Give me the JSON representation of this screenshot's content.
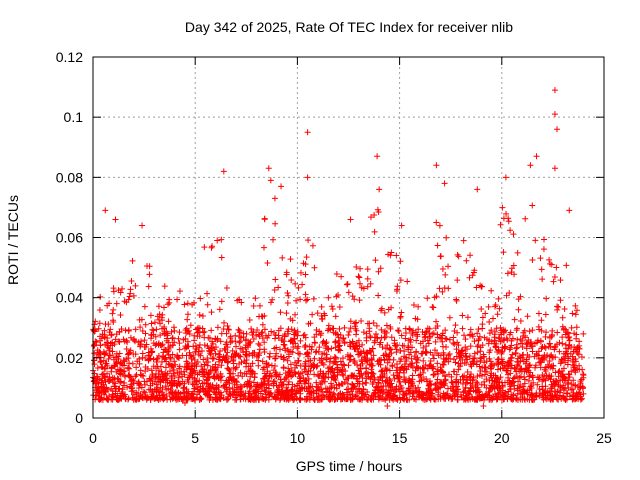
{
  "chart_data": {
    "type": "scatter",
    "title": "Day 342 of 2025, Rate Of TEC Index for receiver nlib",
    "xlabel": "GPS time / hours",
    "ylabel": "ROTI / TECUs",
    "xlim": [
      0,
      25
    ],
    "ylim": [
      0,
      0.12
    ],
    "xticks": [
      0,
      5,
      10,
      15,
      20,
      25
    ],
    "xtick_labels": [
      "0",
      "5",
      "10",
      "15",
      "20",
      "25"
    ],
    "yticks": [
      0,
      0.02,
      0.04,
      0.06,
      0.08,
      0.1,
      0.12
    ],
    "ytick_labels": [
      "0",
      "0.02",
      "0.04",
      "0.06",
      "0.08",
      "0.1",
      "0.12"
    ],
    "grid": true,
    "marker": "plus",
    "colors": {
      "points": "#ff0000",
      "grid": "#a0a0a0",
      "axes": "#000000"
    },
    "series": [
      {
        "x_range": [
          0,
          24
        ],
        "baseline_band": [
          0.006,
          0.03
        ],
        "notable_points": [
          {
            "x": 22.6,
            "y": 0.109
          },
          {
            "x": 22.6,
            "y": 0.101
          },
          {
            "x": 22.7,
            "y": 0.096
          },
          {
            "x": 10.5,
            "y": 0.095
          },
          {
            "x": 13.9,
            "y": 0.087
          },
          {
            "x": 21.7,
            "y": 0.087
          },
          {
            "x": 16.8,
            "y": 0.084
          },
          {
            "x": 8.6,
            "y": 0.083
          },
          {
            "x": 6.4,
            "y": 0.082
          },
          {
            "x": 10.5,
            "y": 0.08
          },
          {
            "x": 21.4,
            "y": 0.084
          },
          {
            "x": 22.6,
            "y": 0.083
          },
          {
            "x": 20.2,
            "y": 0.08
          },
          {
            "x": 17.2,
            "y": 0.078
          },
          {
            "x": 8.7,
            "y": 0.079
          },
          {
            "x": 9.2,
            "y": 0.077
          },
          {
            "x": 14.0,
            "y": 0.076
          },
          {
            "x": 18.8,
            "y": 0.076
          },
          {
            "x": 1.1,
            "y": 0.066
          },
          {
            "x": 0.6,
            "y": 0.069
          },
          {
            "x": 12.6,
            "y": 0.066
          },
          {
            "x": 15.1,
            "y": 0.064
          },
          {
            "x": 2.4,
            "y": 0.064
          },
          {
            "x": 8.9,
            "y": 0.073
          },
          {
            "x": 23.3,
            "y": 0.069
          },
          {
            "x": 14.4,
            "y": 0.004
          },
          {
            "x": 19.1,
            "y": 0.004
          },
          {
            "x": 4.5,
            "y": 0.005
          }
        ]
      }
    ]
  }
}
